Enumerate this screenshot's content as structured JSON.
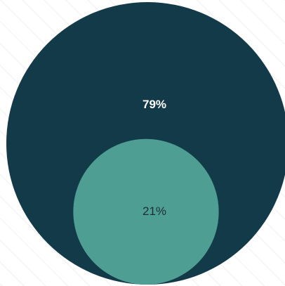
{
  "chart_data": {
    "type": "nested-circle",
    "values": [
      79,
      21
    ],
    "value_labels": [
      "79%",
      "21%"
    ],
    "colors": [
      "#133a49",
      "#4e9e94"
    ]
  }
}
